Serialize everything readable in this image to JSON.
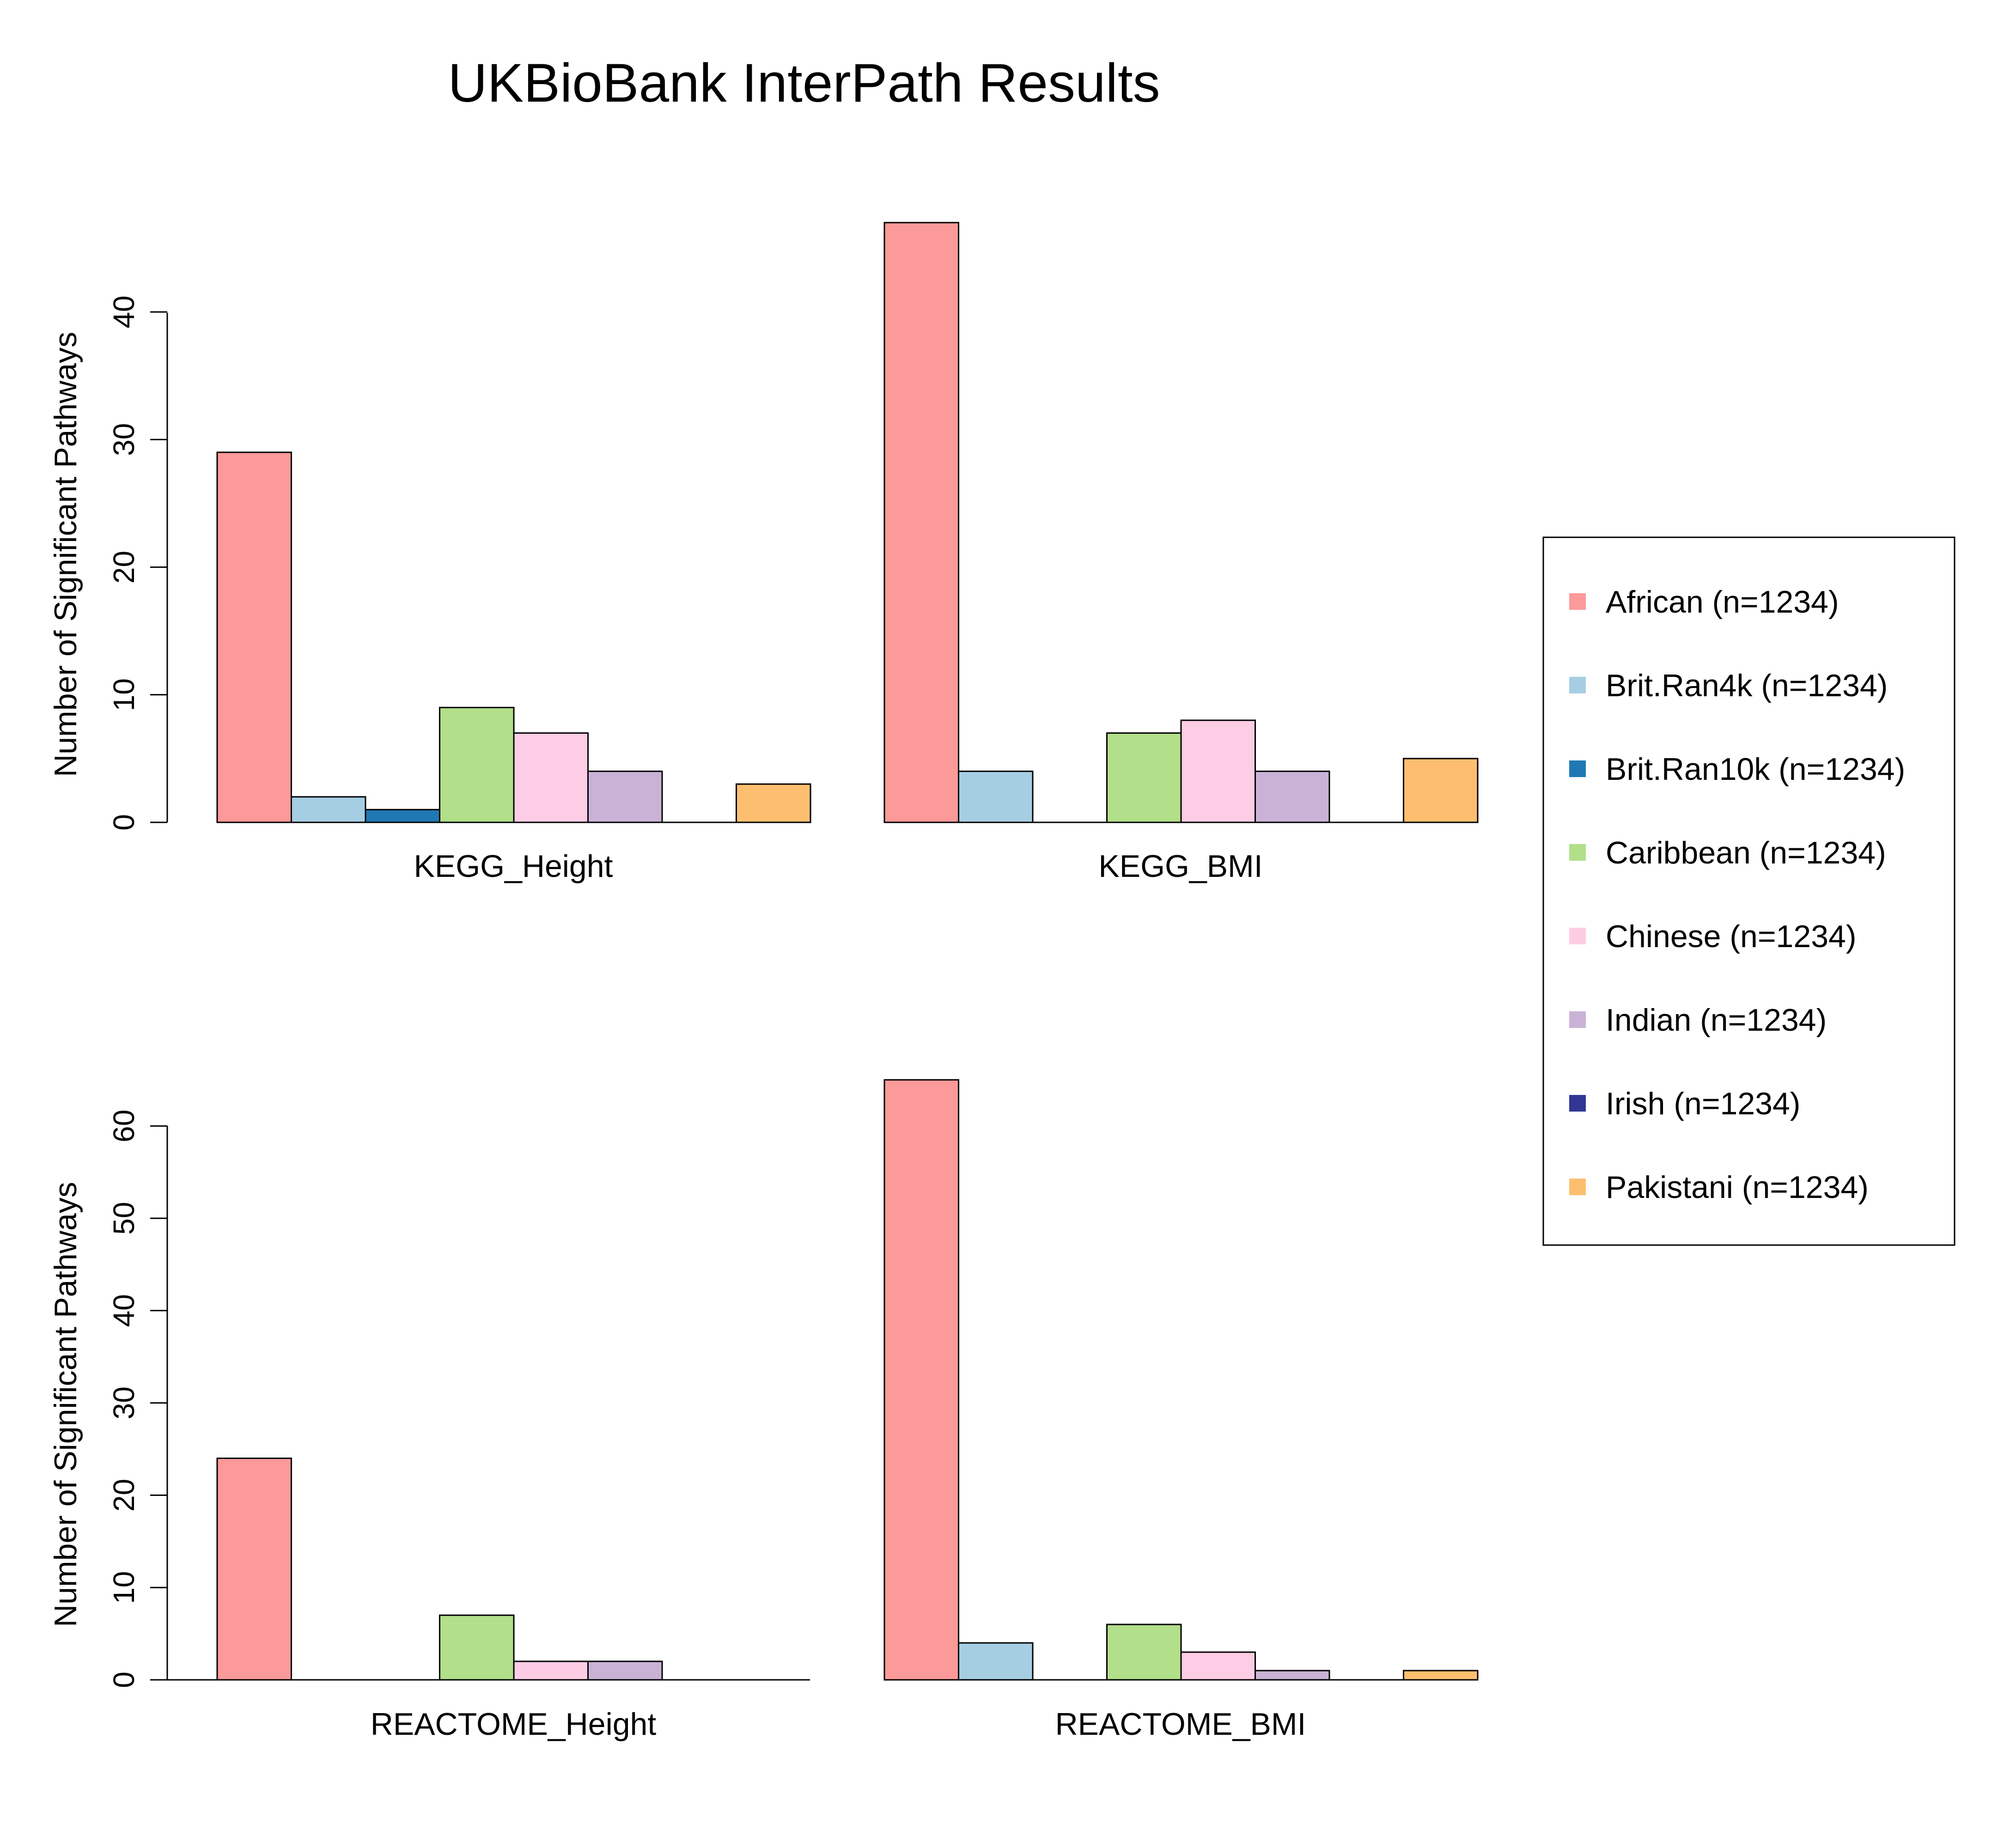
{
  "chart_data": {
    "type": "bar",
    "title": "UKBioBank InterPath Results",
    "ylabel": "Number of Significant Pathways",
    "legend_position": "right",
    "series": [
      {
        "name": "African (n=1234)",
        "color": "#FB9A99"
      },
      {
        "name": "Brit.Ran4k (n=1234)",
        "color": "#A6CEE3"
      },
      {
        "name": "Brit.Ran10k (n=1234)",
        "color": "#1F78B4"
      },
      {
        "name": "Caribbean (n=1234)",
        "color": "#B2DF8A"
      },
      {
        "name": "Chinese (n=1234)",
        "color": "#FCCDE5"
      },
      {
        "name": "Indian (n=1234)",
        "color": "#CAB2D6"
      },
      {
        "name": "Irish (n=1234)",
        "color": "#313695"
      },
      {
        "name": "Pakistani (n=1234)",
        "color": "#FDBF6F"
      }
    ],
    "panels": [
      {
        "xlabel": "KEGG_Height",
        "values": [
          29,
          2,
          1,
          9,
          7,
          4,
          0,
          3
        ],
        "ticks": [
          0,
          10,
          20,
          30,
          40
        ]
      },
      {
        "xlabel": "KEGG_BMI",
        "values": [
          47,
          4,
          0,
          7,
          8,
          4,
          0,
          5
        ],
        "ticks": []
      },
      {
        "xlabel": "REACTOME_Height",
        "values": [
          24,
          0,
          0,
          7,
          2,
          2,
          0,
          0
        ],
        "ticks": [
          0,
          10,
          20,
          30,
          40,
          50,
          60
        ]
      },
      {
        "xlabel": "REACTOME_BMI",
        "values": [
          65,
          4,
          0,
          6,
          3,
          1,
          0,
          1
        ],
        "ticks": []
      }
    ]
  }
}
